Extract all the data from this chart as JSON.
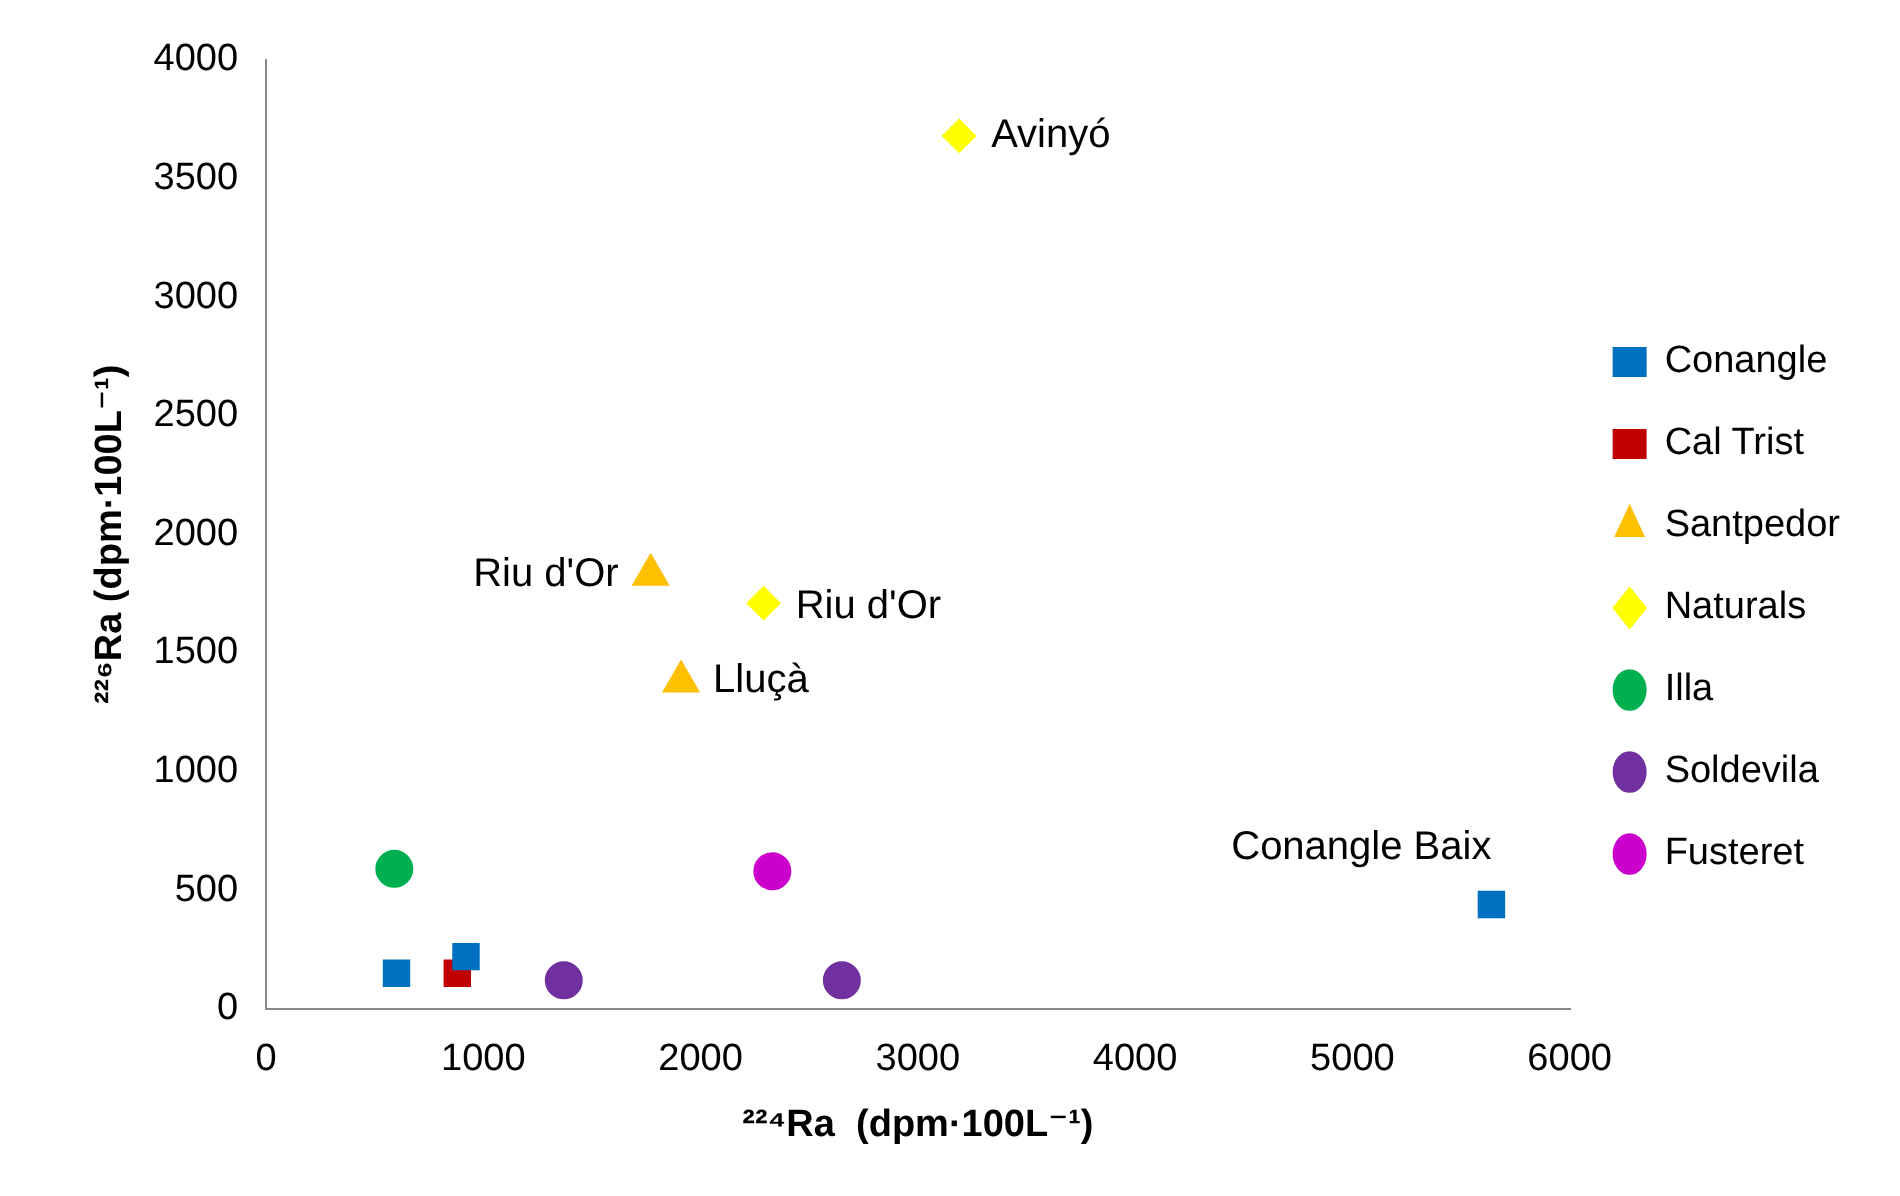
{
  "chart_data": {
    "type": "scatter",
    "xlabel": "²²⁴Ra  (dpm·100L⁻¹)",
    "ylabel": "²²⁶Ra (dpm·100L⁻¹)",
    "xlim": [
      0,
      6000
    ],
    "xticks": [
      0,
      1000,
      2000,
      3000,
      4000,
      5000,
      6000
    ],
    "ylim": [
      0,
      4000
    ],
    "yticks": [
      0,
      500,
      1000,
      1500,
      2000,
      2500,
      3000,
      3500,
      4000
    ],
    "grid": false,
    "legend": "right",
    "series": [
      {
        "name": "Conangle",
        "color": "#0070c0",
        "marker": "square",
        "x": [
          600,
          920,
          5640
        ],
        "values": [
          150,
          220,
          440
        ]
      },
      {
        "name": "Cal Trist",
        "color": "#c00000",
        "marker": "square",
        "x": [
          880
        ],
        "values": [
          150
        ]
      },
      {
        "name": "Santpedor",
        "color": "#ffc000",
        "marker": "triangle",
        "x": [
          1770,
          1910
        ],
        "values": [
          1830,
          1380
        ]
      },
      {
        "name": "Naturals",
        "color": "#ffff00",
        "marker": "diamond",
        "x": [
          3190,
          2290
        ],
        "values": [
          3680,
          1710
        ]
      },
      {
        "name": "Illa",
        "color": "#00b050",
        "marker": "circle",
        "x": [
          590
        ],
        "values": [
          590
        ]
      },
      {
        "name": "Soldevila",
        "color": "#7030a0",
        "marker": "circle",
        "x": [
          1370,
          2650
        ],
        "values": [
          120,
          120
        ]
      },
      {
        "name": "Fusteret",
        "color": "#cc00cc",
        "marker": "circle",
        "x": [
          2330
        ],
        "values": [
          580
        ]
      }
    ],
    "annotations": [
      {
        "text": "Avinyó",
        "x": 3190,
        "y": 3680
      },
      {
        "text": "Riu d'Or",
        "x": 1770,
        "y": 1830
      },
      {
        "text": "Riu d'Or",
        "x": 2290,
        "y": 1710
      },
      {
        "text": "Lluçà",
        "x": 1910,
        "y": 1380
      },
      {
        "text": "Conangle Baix",
        "x": 5640,
        "y": 440
      }
    ]
  }
}
